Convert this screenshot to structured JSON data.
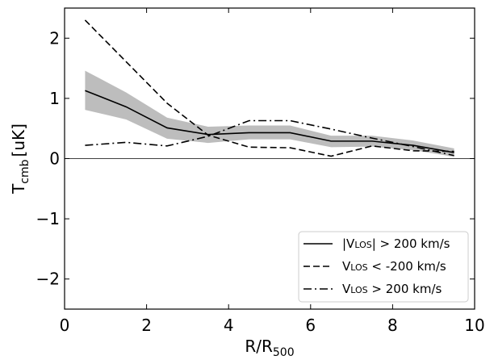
{
  "chart_data": {
    "type": "line",
    "x": [
      0.5,
      1.5,
      2.5,
      3.5,
      4.5,
      5.5,
      6.5,
      7.5,
      8.5,
      9.5
    ],
    "series": [
      {
        "name": "|V_LOS| > 200 km/s",
        "label_main": "|V",
        "label_sub": "LOS",
        "label_rest": "| > 200 km/s",
        "style": "solid",
        "values": [
          1.13,
          0.86,
          0.51,
          0.4,
          0.43,
          0.43,
          0.29,
          0.29,
          0.22,
          0.1
        ],
        "band_lower": [
          0.81,
          0.65,
          0.33,
          0.26,
          0.32,
          0.32,
          0.19,
          0.2,
          0.14,
          0.03
        ],
        "band_upper": [
          1.46,
          1.1,
          0.68,
          0.53,
          0.55,
          0.55,
          0.38,
          0.38,
          0.3,
          0.17
        ]
      },
      {
        "name": "V_LOS < -200 km/s",
        "label_main": "V",
        "label_sub": "LOS",
        "label_rest": " < -200 km/s",
        "style": "dashed",
        "values": [
          2.3,
          1.61,
          0.92,
          0.39,
          0.19,
          0.18,
          0.04,
          0.21,
          0.13,
          0.12
        ]
      },
      {
        "name": "V_LOS > 200 km/s",
        "label_main": "V",
        "label_sub": "LOS",
        "label_rest": " > 200 km/s",
        "style": "dashdot",
        "values": [
          0.22,
          0.27,
          0.21,
          0.37,
          0.63,
          0.63,
          0.49,
          0.34,
          0.2,
          0.05
        ]
      }
    ],
    "xlim": [
      0,
      10
    ],
    "ylim": [
      -2.5,
      2.5
    ],
    "xticks": [
      0,
      2,
      4,
      6,
      8,
      10
    ],
    "xtick_labels": [
      "0",
      "2",
      "4",
      "6",
      "8",
      "10"
    ],
    "yticks": [
      -2,
      -1,
      0,
      1,
      2
    ],
    "ytick_labels": [
      "−2",
      "−1",
      "0",
      "1",
      "2"
    ],
    "xlabel_main": "R/R",
    "xlabel_sub": "500",
    "ylabel_main": "T",
    "ylabel_sub": "cmb",
    "ylabel_rest": "[uK]",
    "zero_line": 0,
    "legend_position": "lower-right",
    "colors": {
      "line": "#000000",
      "band": "#bdbdbd"
    }
  }
}
